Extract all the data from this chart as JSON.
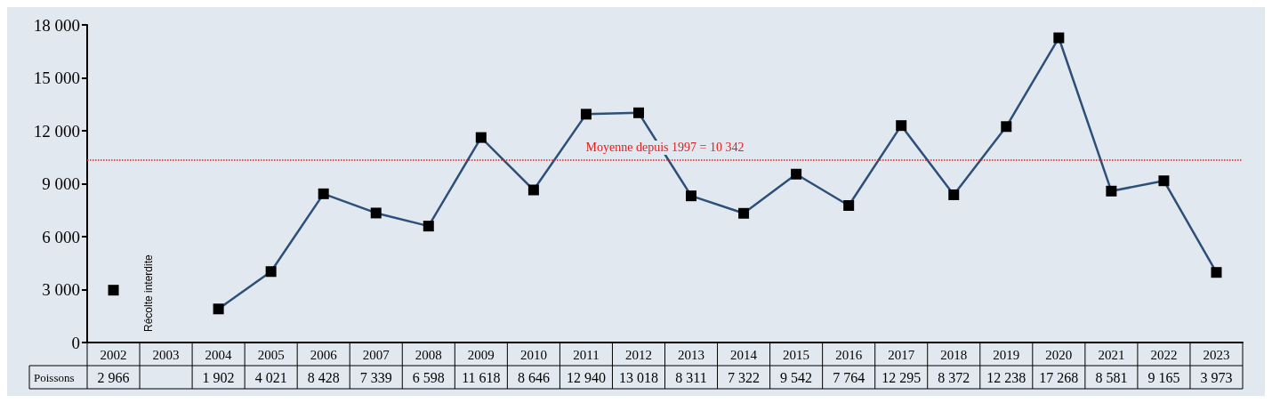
{
  "chart_data": {
    "type": "line",
    "categories": [
      "2002",
      "2003",
      "2004",
      "2005",
      "2006",
      "2007",
      "2008",
      "2009",
      "2010",
      "2011",
      "2012",
      "2013",
      "2014",
      "2015",
      "2016",
      "2017",
      "2018",
      "2019",
      "2020",
      "2021",
      "2022",
      "2023"
    ],
    "series": [
      {
        "name": "Poissons",
        "color": "#2e4f78",
        "colors": [
          "#000000",
          "#000000",
          "#000000",
          "#000000",
          "#000000",
          "#000000",
          "#000000",
          "#000000",
          "#000000",
          "#000000",
          "#000000",
          "#000000",
          "#000000",
          "#000000",
          "#000000",
          "#000000",
          "#000000",
          "#000000",
          "#000000",
          "#000000",
          "#000000",
          "#000000"
        ],
        "values": [
          2966,
          null,
          1902,
          4021,
          8428,
          7339,
          6598,
          11618,
          8646,
          12940,
          13018,
          8311,
          7322,
          9542,
          7764,
          12295,
          8372,
          12238,
          17268,
          8581,
          9165,
          3973
        ]
      }
    ],
    "ylim": [
      0,
      18000
    ],
    "yticks": [
      {
        "value": 0,
        "label": "0"
      },
      {
        "value": 3000,
        "label": "3 000"
      },
      {
        "value": 6000,
        "label": "6 000"
      },
      {
        "value": 9000,
        "label": "9 000"
      },
      {
        "value": 12000,
        "label": "12 000"
      },
      {
        "value": 15000,
        "label": "15 000"
      },
      {
        "value": 18000,
        "label": "18 000"
      }
    ],
    "ref_lines": [
      {
        "axis": "y",
        "value": 10342,
        "label": "Moyenne depuis 1997 = 10 342",
        "color": "#e02020",
        "line_style": "dotted"
      }
    ],
    "annotations": [
      "Récolte interdite"
    ],
    "data_labels": true,
    "marker": "square",
    "line_style": "solid",
    "grid": false,
    "legend": "bottom left"
  }
}
